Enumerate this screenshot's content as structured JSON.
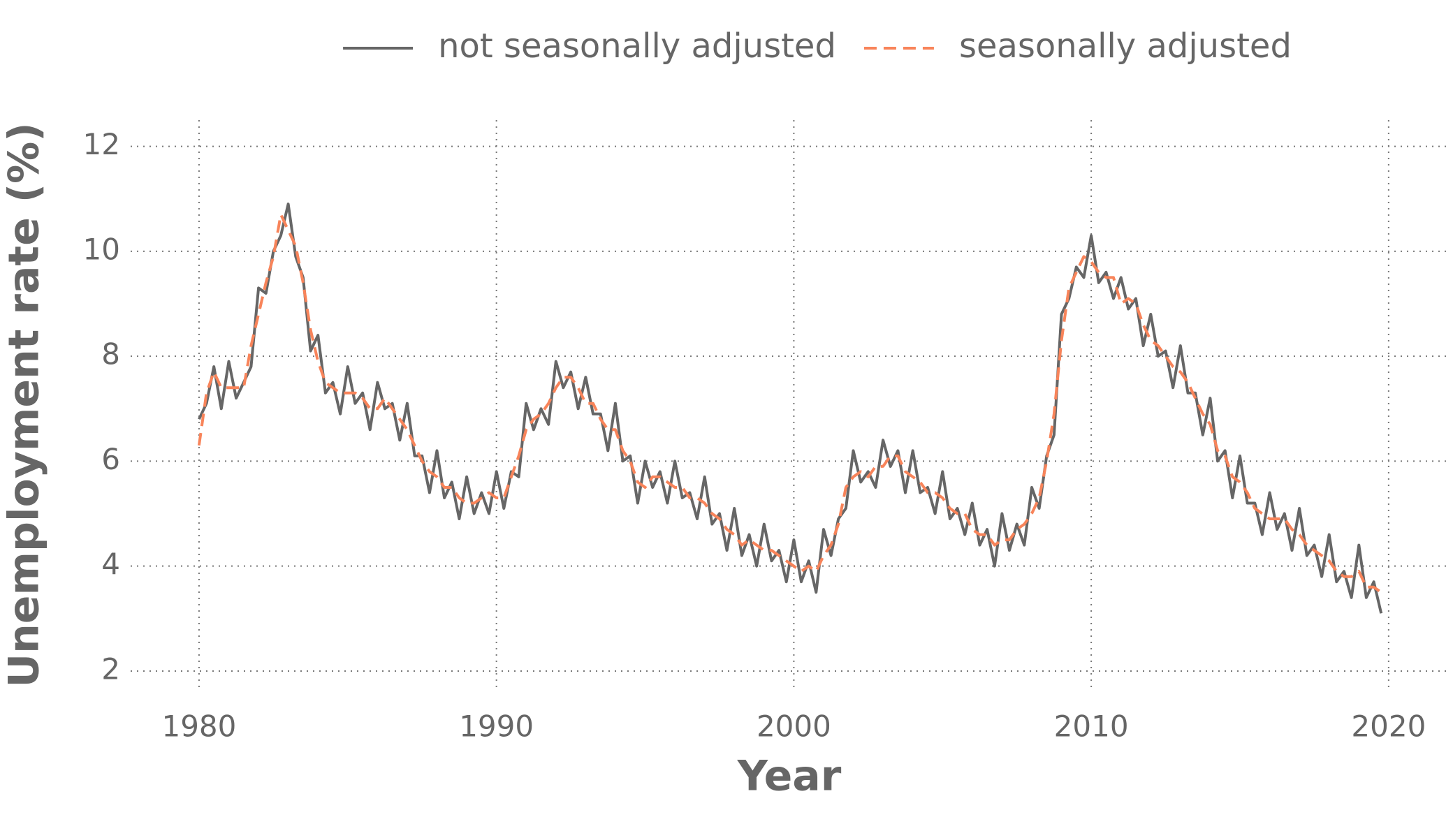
{
  "chart_data": {
    "type": "line",
    "xlabel": "Year",
    "ylabel": "Unemployment rate (%)",
    "x": [
      1980,
      1980.25,
      1980.5,
      1980.75,
      1981,
      1981.25,
      1981.5,
      1981.75,
      1982,
      1982.25,
      1982.5,
      1982.75,
      1983,
      1983.25,
      1983.5,
      1983.75,
      1984,
      1984.25,
      1984.5,
      1984.75,
      1985,
      1985.25,
      1985.5,
      1985.75,
      1986,
      1986.25,
      1986.5,
      1986.75,
      1987,
      1987.25,
      1987.5,
      1987.75,
      1988,
      1988.25,
      1988.5,
      1988.75,
      1989,
      1989.25,
      1989.5,
      1989.75,
      1990,
      1990.25,
      1990.5,
      1990.75,
      1991,
      1991.25,
      1991.5,
      1991.75,
      1992,
      1992.25,
      1992.5,
      1992.75,
      1993,
      1993.25,
      1993.5,
      1993.75,
      1994,
      1994.25,
      1994.5,
      1994.75,
      1995,
      1995.25,
      1995.5,
      1995.75,
      1996,
      1996.25,
      1996.5,
      1996.75,
      1997,
      1997.25,
      1997.5,
      1997.75,
      1998,
      1998.25,
      1998.5,
      1998.75,
      1999,
      1999.25,
      1999.5,
      1999.75,
      2000,
      2000.25,
      2000.5,
      2000.75,
      2001,
      2001.25,
      2001.5,
      2001.75,
      2002,
      2002.25,
      2002.5,
      2002.75,
      2003,
      2003.25,
      2003.5,
      2003.75,
      2004,
      2004.25,
      2004.5,
      2004.75,
      2005,
      2005.25,
      2005.5,
      2005.75,
      2006,
      2006.25,
      2006.5,
      2006.75,
      2007,
      2007.25,
      2007.5,
      2007.75,
      2008,
      2008.25,
      2008.5,
      2008.75,
      2009,
      2009.25,
      2009.5,
      2009.75,
      2010,
      2010.25,
      2010.5,
      2010.75,
      2011,
      2011.25,
      2011.5,
      2011.75,
      2012,
      2012.25,
      2012.5,
      2012.75,
      2013,
      2013.25,
      2013.5,
      2013.75,
      2014,
      2014.25,
      2014.5,
      2014.75,
      2015,
      2015.25,
      2015.5,
      2015.75,
      2016,
      2016.25,
      2016.5,
      2016.75,
      2017,
      2017.25,
      2017.5,
      2017.75,
      2018,
      2018.25,
      2018.5,
      2018.75,
      2019,
      2019.25,
      2019.5,
      2019.75
    ],
    "series": [
      {
        "name": "not seasonally adjusted",
        "color": "#666666",
        "dash": false,
        "values": [
          6.8,
          7.1,
          7.8,
          7.0,
          7.9,
          7.2,
          7.5,
          7.8,
          9.3,
          9.2,
          10.0,
          10.3,
          10.9,
          9.9,
          9.5,
          8.1,
          8.4,
          7.3,
          7.5,
          6.9,
          7.8,
          7.1,
          7.3,
          6.6,
          7.5,
          7.0,
          7.1,
          6.4,
          7.1,
          6.1,
          6.1,
          5.4,
          6.2,
          5.3,
          5.6,
          4.9,
          5.7,
          5.0,
          5.4,
          5.0,
          5.8,
          5.1,
          5.8,
          5.7,
          7.1,
          6.6,
          7.0,
          6.7,
          7.9,
          7.4,
          7.7,
          7.0,
          7.6,
          6.9,
          6.9,
          6.2,
          7.1,
          6.0,
          6.1,
          5.2,
          6.0,
          5.5,
          5.8,
          5.2,
          6.0,
          5.3,
          5.4,
          4.9,
          5.7,
          4.8,
          5.0,
          4.3,
          5.1,
          4.2,
          4.6,
          4.0,
          4.8,
          4.1,
          4.3,
          3.7,
          4.5,
          3.7,
          4.1,
          3.5,
          4.7,
          4.2,
          4.9,
          5.1,
          6.2,
          5.6,
          5.8,
          5.5,
          6.4,
          5.9,
          6.2,
          5.4,
          6.2,
          5.4,
          5.5,
          5.0,
          5.8,
          4.9,
          5.1,
          4.6,
          5.2,
          4.4,
          4.7,
          4.0,
          5.0,
          4.3,
          4.8,
          4.4,
          5.5,
          5.1,
          6.1,
          6.5,
          8.8,
          9.1,
          9.7,
          9.5,
          10.3,
          9.4,
          9.6,
          9.1,
          9.5,
          8.9,
          9.1,
          8.2,
          8.8,
          8.0,
          8.1,
          7.4,
          8.2,
          7.3,
          7.3,
          6.5,
          7.2,
          6.0,
          6.2,
          5.3,
          6.1,
          5.2,
          5.2,
          4.6,
          5.4,
          4.7,
          5.0,
          4.3,
          5.1,
          4.2,
          4.4,
          3.8,
          4.6,
          3.7,
          3.9,
          3.4,
          4.4,
          3.4,
          3.7,
          3.1
        ]
      },
      {
        "name": "seasonally adjusted",
        "color": "#f8845a",
        "dash": true,
        "values": [
          6.3,
          7.3,
          7.7,
          7.4,
          7.4,
          7.4,
          7.4,
          8.2,
          8.8,
          9.4,
          9.9,
          10.7,
          10.4,
          10.1,
          9.4,
          8.5,
          7.9,
          7.5,
          7.4,
          7.3,
          7.3,
          7.3,
          7.2,
          7.0,
          7.0,
          7.2,
          7.0,
          6.8,
          6.6,
          6.3,
          6.0,
          5.8,
          5.7,
          5.5,
          5.5,
          5.3,
          5.2,
          5.2,
          5.3,
          5.4,
          5.3,
          5.3,
          5.7,
          6.1,
          6.6,
          6.8,
          6.9,
          7.1,
          7.4,
          7.6,
          7.6,
          7.4,
          7.1,
          7.1,
          6.8,
          6.6,
          6.6,
          6.2,
          6.0,
          5.6,
          5.5,
          5.7,
          5.7,
          5.6,
          5.5,
          5.5,
          5.3,
          5.3,
          5.2,
          5.0,
          4.9,
          4.7,
          4.6,
          4.4,
          4.5,
          4.4,
          4.3,
          4.3,
          4.2,
          4.1,
          4.0,
          3.9,
          4.0,
          3.9,
          4.2,
          4.4,
          4.8,
          5.5,
          5.7,
          5.8,
          5.7,
          5.9,
          5.9,
          6.1,
          6.1,
          5.8,
          5.7,
          5.6,
          5.4,
          5.4,
          5.3,
          5.1,
          5.0,
          5.0,
          4.7,
          4.6,
          4.6,
          4.4,
          4.5,
          4.5,
          4.7,
          4.8,
          5.0,
          5.3,
          6.0,
          6.9,
          8.3,
          9.3,
          9.6,
          9.9,
          9.8,
          9.6,
          9.5,
          9.5,
          9.0,
          9.1,
          9.0,
          8.6,
          8.3,
          8.2,
          8.0,
          7.8,
          7.7,
          7.5,
          7.2,
          6.9,
          6.7,
          6.2,
          6.1,
          5.7,
          5.6,
          5.4,
          5.1,
          5.0,
          4.9,
          4.9,
          4.9,
          4.7,
          4.6,
          4.4,
          4.3,
          4.2,
          4.1,
          3.9,
          3.8,
          3.8,
          3.9,
          3.6,
          3.6,
          3.5
        ]
      }
    ],
    "xlim": [
      1977.7,
      2022
    ],
    "xticks": [
      1980,
      1990,
      2000,
      2010,
      2020
    ],
    "ylim": [
      1.6,
      12.5
    ],
    "yticks": [
      2,
      4,
      6,
      8,
      10,
      12
    ],
    "grid": true,
    "legend": "top"
  }
}
